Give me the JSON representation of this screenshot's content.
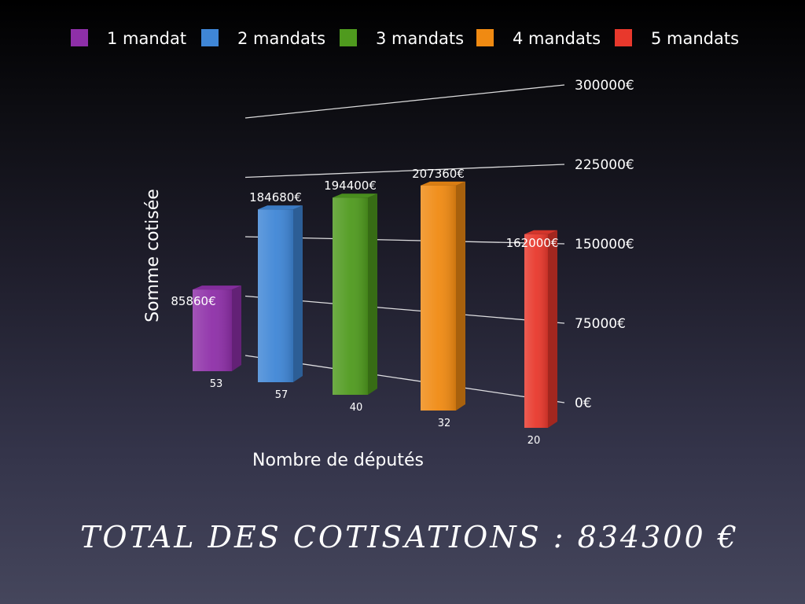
{
  "chart_data": {
    "type": "bar",
    "title": "",
    "xlabel": "Nombre de députés",
    "ylabel": "Somme cotisée",
    "ylim": [
      0,
      300000
    ],
    "y_ticks": [
      "0€",
      "75000€",
      "150000€",
      "225000€",
      "300000€"
    ],
    "y_tick_values": [
      0,
      75000,
      150000,
      225000,
      300000
    ],
    "legend_position": "top",
    "grid": true,
    "series": [
      {
        "name": "1 mandat",
        "value": 85860,
        "value_label": "85860€",
        "deputies": 53,
        "color": "#8e2fa8"
      },
      {
        "name": "2 mandats",
        "value": 184680,
        "value_label": "184680€",
        "deputies": 57,
        "color": "#3f86d6"
      },
      {
        "name": "3 mandats",
        "value": 194400,
        "value_label": "194400€",
        "deputies": 40,
        "color": "#4f9a1e"
      },
      {
        "name": "4 mandats",
        "value": 207360,
        "value_label": "207360€",
        "deputies": 32,
        "color": "#f08a12"
      },
      {
        "name": "5 mandats",
        "value": 162000,
        "value_label": "162000€",
        "deputies": 20,
        "color": "#e8382c"
      }
    ]
  },
  "total": {
    "text": "TOTAL DES COTISATIONS : 834300 €"
  }
}
